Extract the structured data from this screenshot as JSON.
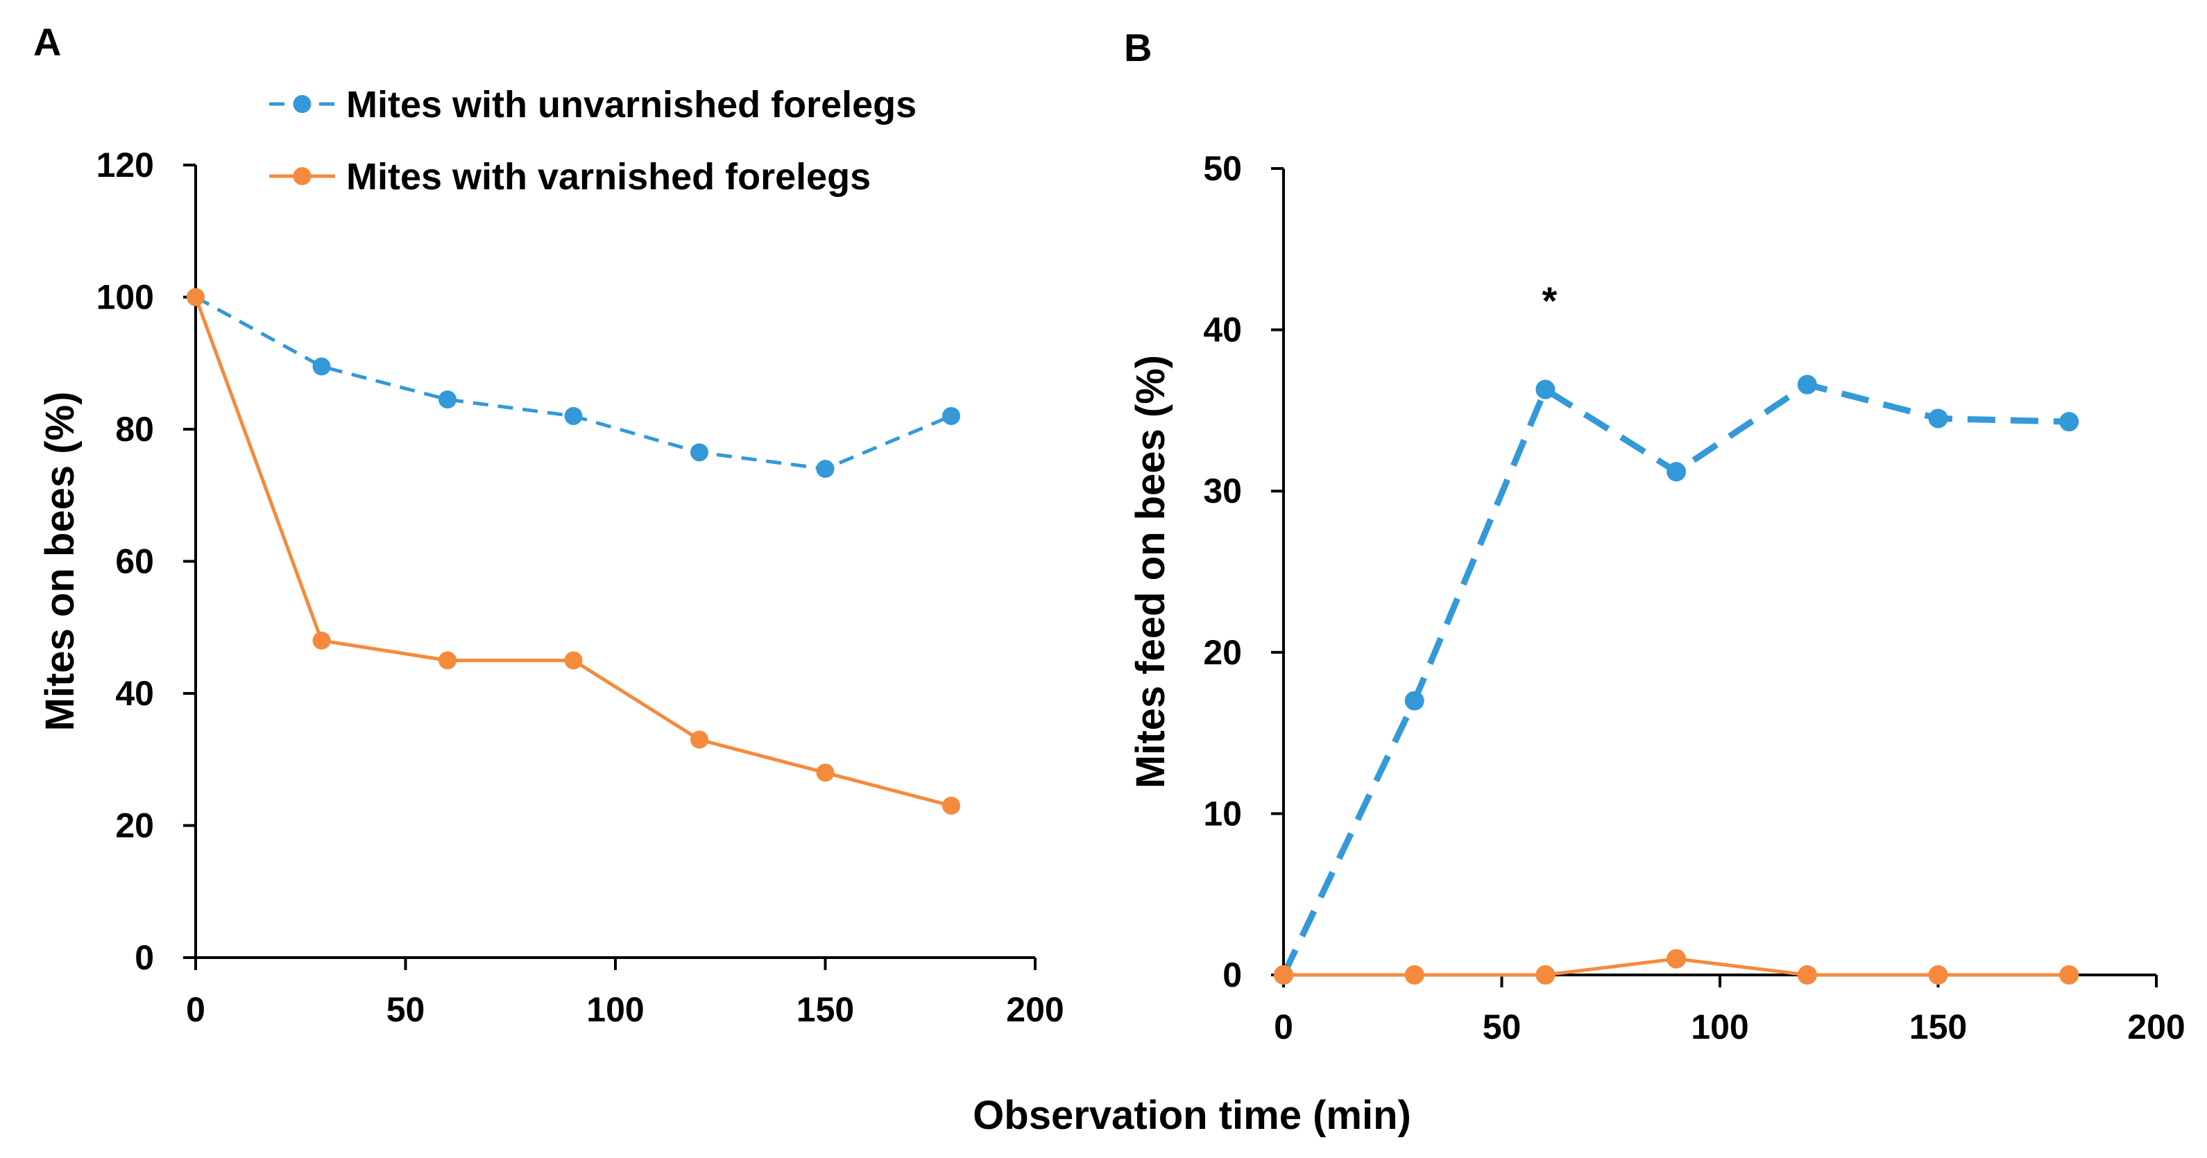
{
  "figure": {
    "shared_xlabel": "Observation time (min)"
  },
  "colors": {
    "unvarnished": "#3399d8",
    "varnished": "#f58a3c",
    "axis": "#000000"
  },
  "chart_data": [
    {
      "type": "line",
      "panel_label": "A",
      "title": "",
      "xlabel": "Observation time (min)",
      "ylabel": "Mites on bees (%)",
      "xlim": [
        0,
        200
      ],
      "ylim": [
        0,
        120
      ],
      "xticks": [
        0,
        50,
        100,
        150,
        200
      ],
      "yticks": [
        0,
        20,
        40,
        60,
        80,
        100,
        120
      ],
      "grid": false,
      "legend_position": "top",
      "x": [
        0,
        30,
        60,
        90,
        120,
        150,
        180
      ],
      "series": [
        {
          "name": "Mites with unvarnished forelegs",
          "style": "dashed",
          "color": "#3399d8",
          "values": [
            100,
            89.5,
            84.5,
            82,
            76.5,
            74,
            82
          ]
        },
        {
          "name": "Mites with varnished forelegs",
          "style": "solid",
          "color": "#f58a3c",
          "values": [
            100,
            48,
            45,
            45,
            33,
            28,
            23
          ]
        }
      ]
    },
    {
      "type": "line",
      "panel_label": "B",
      "title": "",
      "xlabel": "Observation time (min)",
      "ylabel": "Mites feed on bees (%)",
      "xlim": [
        0,
        200
      ],
      "ylim": [
        0,
        50
      ],
      "xticks": [
        0,
        50,
        100,
        150,
        200
      ],
      "yticks": [
        0,
        10,
        20,
        30,
        40,
        50
      ],
      "grid": false,
      "x": [
        0,
        30,
        60,
        90,
        120,
        150,
        180
      ],
      "annotations": [
        {
          "text": "*",
          "x": 60,
          "y": 42
        }
      ],
      "series": [
        {
          "style": "dashed",
          "color": "#3399d8",
          "values": [
            0,
            17,
            36.3,
            31.2,
            36.6,
            34.5,
            34.3
          ]
        },
        {
          "style": "solid",
          "color": "#f58a3c",
          "values": [
            0,
            0,
            0,
            1,
            0,
            0,
            0
          ]
        }
      ]
    }
  ]
}
